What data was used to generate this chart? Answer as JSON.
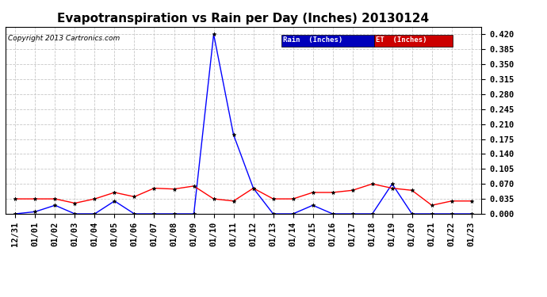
{
  "title": "Evapotranspiration vs Rain per Day (Inches) 20130124",
  "copyright": "Copyright 2013 Cartronics.com",
  "x_labels": [
    "12/31",
    "01/01",
    "01/02",
    "01/03",
    "01/04",
    "01/05",
    "01/06",
    "01/07",
    "01/08",
    "01/09",
    "01/10",
    "01/11",
    "01/12",
    "01/13",
    "01/14",
    "01/15",
    "01/16",
    "01/17",
    "01/18",
    "01/19",
    "01/20",
    "01/21",
    "01/22",
    "01/23"
  ],
  "rain_values": [
    0.0,
    0.005,
    0.02,
    0.0,
    0.0,
    0.03,
    0.0,
    0.0,
    0.0,
    0.0,
    0.42,
    0.185,
    0.06,
    0.0,
    0.0,
    0.02,
    0.0,
    0.0,
    0.0,
    0.07,
    0.0,
    0.0,
    0.0,
    0.0
  ],
  "et_values": [
    0.035,
    0.035,
    0.035,
    0.025,
    0.035,
    0.05,
    0.04,
    0.06,
    0.058,
    0.065,
    0.035,
    0.03,
    0.06,
    0.035,
    0.035,
    0.05,
    0.05,
    0.055,
    0.07,
    0.06,
    0.055,
    0.02,
    0.03,
    0.03
  ],
  "rain_color": "#0000ff",
  "et_color": "#ff0000",
  "background_color": "#ffffff",
  "grid_color": "#c8c8c8",
  "ylim": [
    0.0,
    0.4375
  ],
  "yticks": [
    0.0,
    0.035,
    0.07,
    0.105,
    0.14,
    0.175,
    0.21,
    0.245,
    0.28,
    0.315,
    0.35,
    0.385,
    0.42
  ],
  "title_fontsize": 11,
  "tick_fontsize": 7.5,
  "copyright_fontsize": 6.5,
  "legend_rain_label": "Rain  (Inches)",
  "legend_et_label": "ET  (Inches)",
  "legend_rain_bg": "#0000bb",
  "legend_et_bg": "#cc0000"
}
